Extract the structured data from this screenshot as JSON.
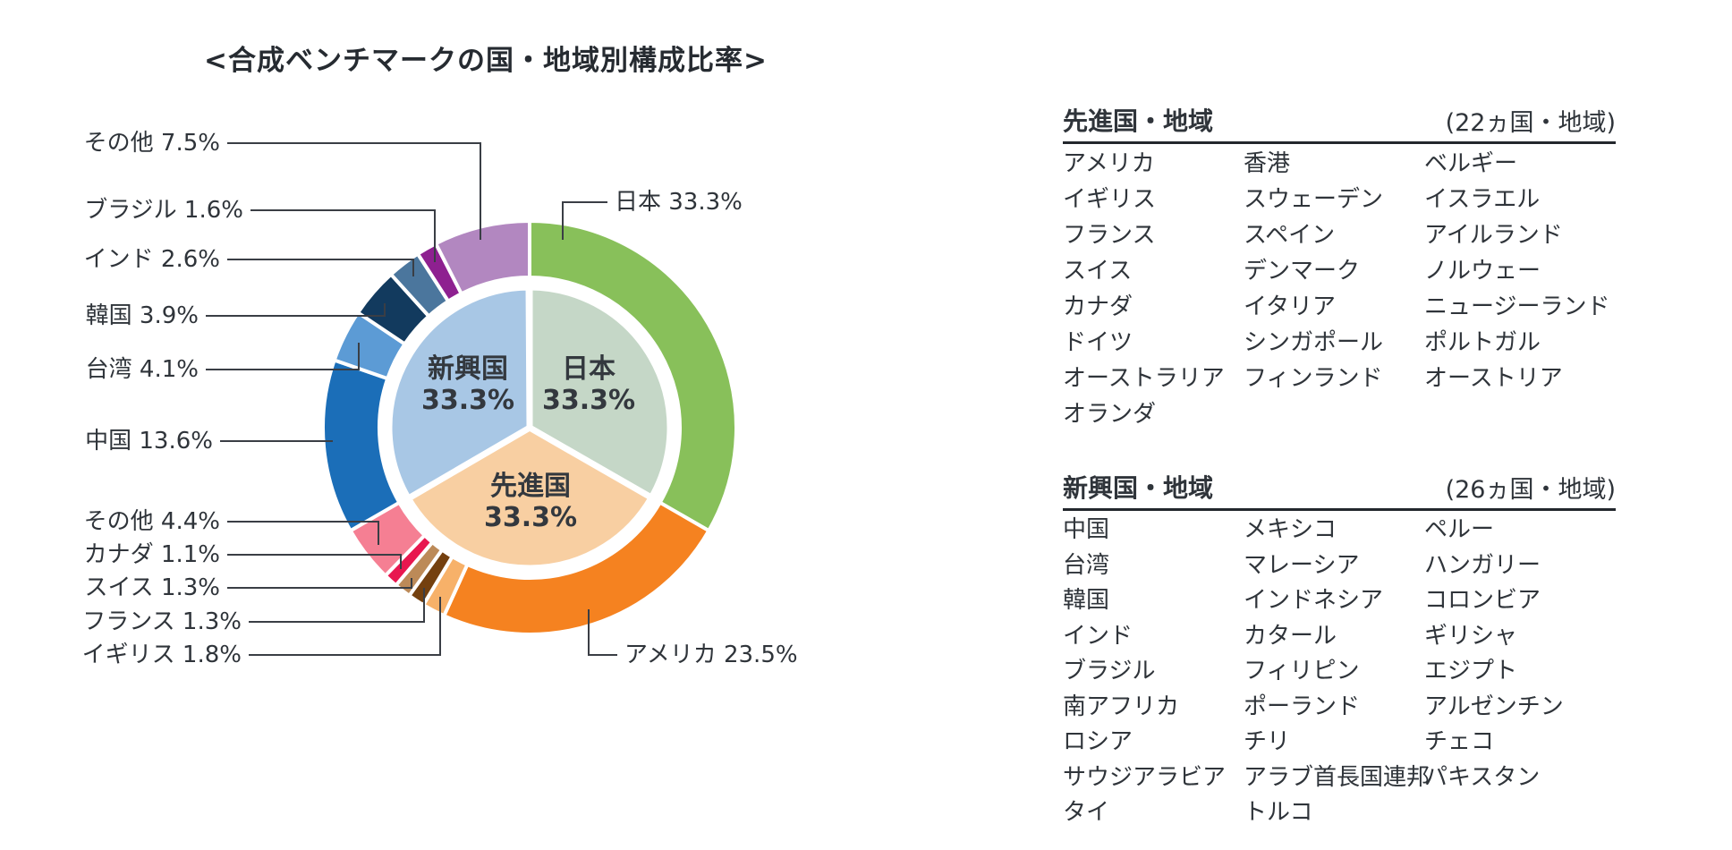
{
  "title": "<合成ベンチマークの国・地域別構成比率>",
  "chart_data": {
    "type": "pie",
    "title": "<合成ベンチマークの国・地域別構成比率>",
    "unit": "%",
    "legend_position": "none",
    "inner_segments": [
      {
        "key": "inner-japan",
        "label": "日本",
        "value": 33.3,
        "color": "#C5D7C7"
      },
      {
        "key": "inner-developed",
        "label": "先進国",
        "value": 33.3,
        "color": "#F8CFA2"
      },
      {
        "key": "inner-emerging",
        "label": "新興国",
        "value": 33.3,
        "color": "#A8C7E5"
      }
    ],
    "outer_segments": [
      {
        "key": "japan",
        "label": "日本",
        "value": 33.3,
        "color": "#88C05A",
        "group": "日本"
      },
      {
        "key": "usa",
        "label": "アメリカ",
        "value": 23.5,
        "color": "#F58220",
        "group": "先進国"
      },
      {
        "key": "uk",
        "label": "イギリス",
        "value": 1.8,
        "color": "#F7B169",
        "group": "先進国"
      },
      {
        "key": "france",
        "label": "フランス",
        "value": 1.3,
        "color": "#74400F",
        "group": "先進国"
      },
      {
        "key": "switzerland",
        "label": "スイス",
        "value": 1.3,
        "color": "#BC8A58",
        "group": "先進国"
      },
      {
        "key": "canada",
        "label": "カナダ",
        "value": 1.1,
        "color": "#E8174F",
        "group": "先進国"
      },
      {
        "key": "other-developed",
        "label": "その他",
        "value": 4.4,
        "color": "#F57F93",
        "group": "先進国"
      },
      {
        "key": "china",
        "label": "中国",
        "value": 13.6,
        "color": "#1B6EB8",
        "group": "新興国"
      },
      {
        "key": "taiwan",
        "label": "台湾",
        "value": 4.1,
        "color": "#5C9BD5",
        "group": "新興国"
      },
      {
        "key": "korea",
        "label": "韓国",
        "value": 3.9,
        "color": "#123A5E",
        "group": "新興国"
      },
      {
        "key": "india",
        "label": "インド",
        "value": 2.6,
        "color": "#4B769D",
        "group": "新興国"
      },
      {
        "key": "brazil",
        "label": "ブラジル",
        "value": 1.6,
        "color": "#8E2090",
        "group": "新興国"
      },
      {
        "key": "other-emerging",
        "label": "その他",
        "value": 7.5,
        "color": "#B287C0",
        "group": "新興国"
      }
    ]
  },
  "tables": {
    "developed": {
      "title": "先進国・地域",
      "count_note": "(22ヵ国・地域)",
      "columns": [
        [
          "アメリカ",
          "イギリス",
          "フランス",
          "スイス",
          "カナダ",
          "ドイツ",
          "オーストラリア",
          "オランダ"
        ],
        [
          "香港",
          "スウェーデン",
          "スペイン",
          "デンマーク",
          "イタリア",
          "シンガポール",
          "フィンランド"
        ],
        [
          "ベルギー",
          "イスラエル",
          "アイルランド",
          "ノルウェー",
          "ニュージーランド",
          "ポルトガル",
          "オーストリア"
        ]
      ]
    },
    "emerging": {
      "title": "新興国・地域",
      "count_note": "(26ヵ国・地域)",
      "columns": [
        [
          "中国",
          "台湾",
          "韓国",
          "インド",
          "ブラジル",
          "南アフリカ",
          "ロシア",
          "サウジアラビア",
          "タイ"
        ],
        [
          "メキシコ",
          "マレーシア",
          "インドネシア",
          "カタール",
          "フィリピン",
          "ポーランド",
          "チリ",
          "アラブ首長国連邦",
          "トルコ"
        ],
        [
          "ペルー",
          "ハンガリー",
          "コロンビア",
          "ギリシャ",
          "エジプト",
          "アルゼンチン",
          "チェコ",
          "パキスタン"
        ]
      ]
    }
  }
}
